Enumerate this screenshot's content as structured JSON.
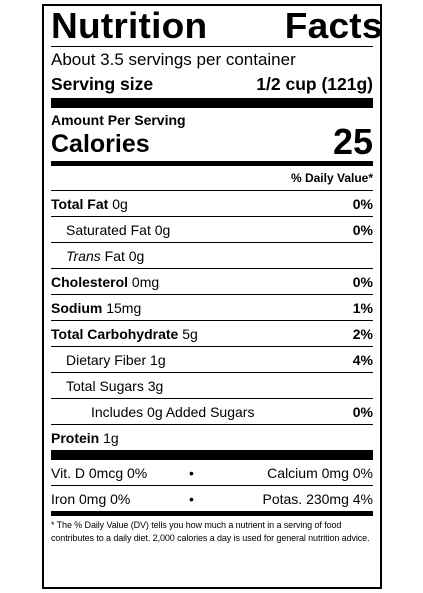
{
  "label": {
    "title_word1": "Nutrition",
    "title_word2": "Facts",
    "servings_per_container": "About 3.5 servings per container",
    "serving_size_label": "Serving size",
    "serving_size_value": "1/2 cup (121g)",
    "amount_per_serving": "Amount Per Serving",
    "calories_label": "Calories",
    "calories_value": "25",
    "dv_header": "% Daily Value*"
  },
  "nutrients": {
    "total_fat": {
      "name": "Total Fat",
      "amount": "0g",
      "pct": "0%"
    },
    "saturated_fat": {
      "name": "Saturated Fat",
      "amount": "0g",
      "pct": "0%"
    },
    "trans_fat": {
      "name_italic": "Trans",
      "name": "Fat",
      "amount": "0g"
    },
    "cholesterol": {
      "name": "Cholesterol",
      "amount": "0mg",
      "pct": "0%"
    },
    "sodium": {
      "name": "Sodium",
      "amount": "15mg",
      "pct": "1%"
    },
    "total_carbohydrate": {
      "name": "Total Carbohydrate",
      "amount": "5g",
      "pct": "2%"
    },
    "dietary_fiber": {
      "name": "Dietary Fiber",
      "amount": "1g",
      "pct": "4%"
    },
    "total_sugars": {
      "name": "Total Sugars",
      "amount": "3g"
    },
    "added_sugars": {
      "name": "Includes 0g Added Sugars",
      "pct": "0%"
    },
    "protein": {
      "name": "Protein",
      "amount": "1g"
    }
  },
  "vitamins": {
    "row1_left": "Vit. D 0mcg 0%",
    "row1_dot": "•",
    "row1_right": "Calcium 0mg 0%",
    "row2_left": "Iron 0mg 0%",
    "row2_dot": "•",
    "row2_right": "Potas. 230mg 4%"
  },
  "footnote": "* The % Daily Value (DV) tells you how much a nutrient in a serving of food contributes to a daily diet. 2,000 calories a day is used for general nutrition advice."
}
